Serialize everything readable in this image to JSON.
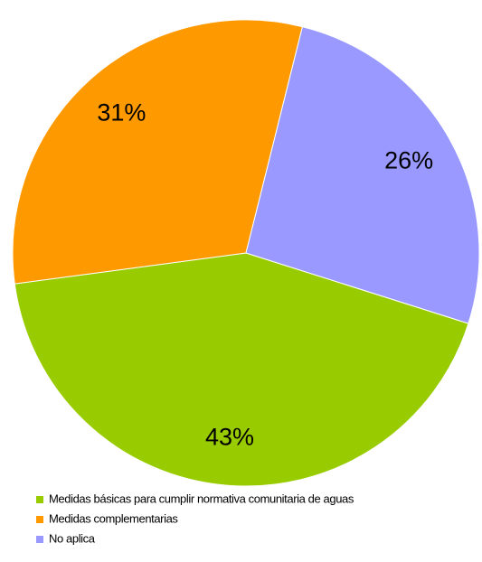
{
  "chart_data": {
    "type": "pie",
    "categories": [
      "Medidas básicas para cumplir normativa comunitaria de aguas",
      "Medidas complementarias",
      "No aplica"
    ],
    "values": [
      43,
      31,
      26
    ],
    "value_labels": [
      "43%",
      "31%",
      "26%"
    ],
    "colors": [
      "#99cc00",
      "#ff9900",
      "#9999ff"
    ],
    "legend": "bottom"
  }
}
